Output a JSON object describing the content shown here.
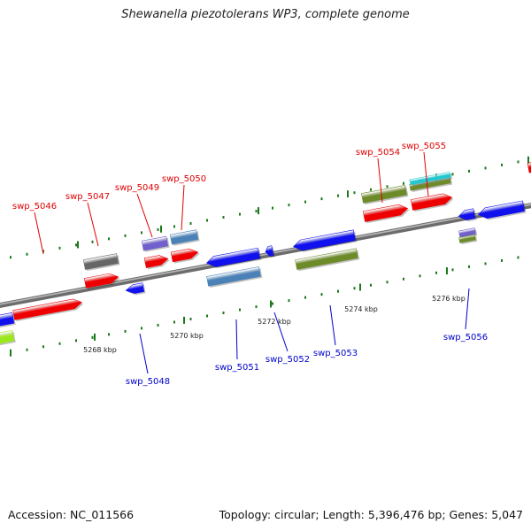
{
  "title": "Shewanella piezotolerans WP3, complete genome",
  "footer": {
    "accession": "Accession: NC_011566",
    "summary": "Topology: circular; Length: 5,396,476 bp; Genes: 5,047"
  },
  "colors": {
    "forward_label": "#e00000",
    "reverse_label": "#0000cc",
    "backbone": "#888888",
    "tick": "#1a7a1a",
    "red": "#ee0000",
    "blue": "#1111ee",
    "olive": "#6e8b2a",
    "steel": "#4a82b8",
    "gray": "#666666",
    "purple": "#7060cc",
    "cyan": "#22c8d0",
    "lime": "#9be81e"
  },
  "axis_ticks": [
    {
      "kbp": 5268,
      "label": "5268 kbp"
    },
    {
      "kbp": 5270,
      "label": "5270 kbp"
    },
    {
      "kbp": 5272,
      "label": "5272 kbp"
    },
    {
      "kbp": 5274,
      "label": "5274 kbp"
    },
    {
      "kbp": 5276,
      "label": "5276 kbp"
    }
  ],
  "gene_labels": [
    {
      "name": "swp_5046",
      "strand": "forward"
    },
    {
      "name": "swp_5047",
      "strand": "forward"
    },
    {
      "name": "swp_5049",
      "strand": "forward"
    },
    {
      "name": "swp_5050",
      "strand": "forward"
    },
    {
      "name": "swp_5054",
      "strand": "forward"
    },
    {
      "name": "swp_5055",
      "strand": "forward"
    },
    {
      "name": "swp_5048",
      "strand": "reverse"
    },
    {
      "name": "swp_5051",
      "strand": "reverse"
    },
    {
      "name": "swp_5052",
      "strand": "reverse"
    },
    {
      "name": "swp_5053",
      "strand": "reverse"
    },
    {
      "name": "swp_5056",
      "strand": "reverse"
    }
  ]
}
